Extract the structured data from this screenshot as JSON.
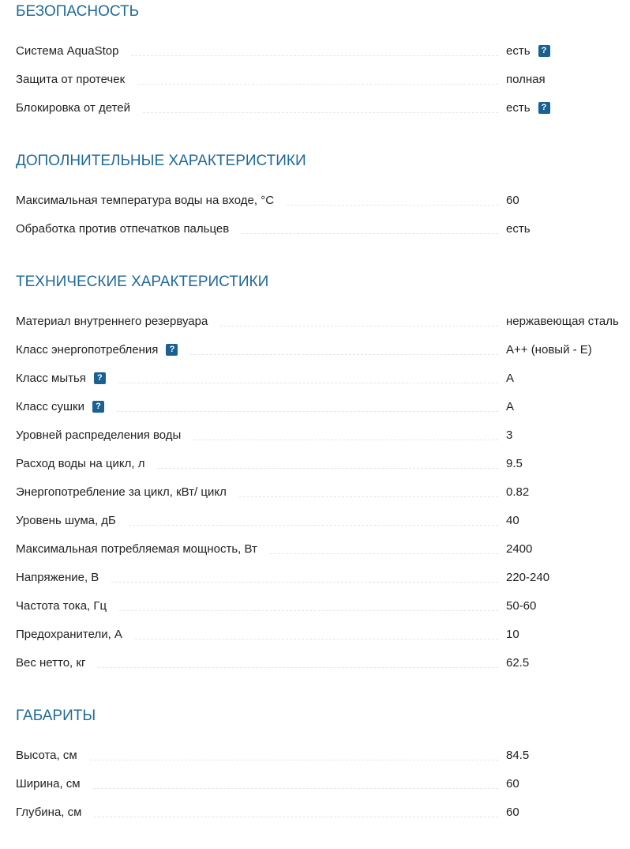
{
  "sections": [
    {
      "title": "БЕЗОПАСНОСТЬ",
      "rows": [
        {
          "label": "Система AquaStop",
          "value": "есть",
          "value_help": true
        },
        {
          "label": "Защита от протечек",
          "value": "полная"
        },
        {
          "label": "Блокировка от детей",
          "value": "есть",
          "value_help": true
        }
      ]
    },
    {
      "title": "ДОПОЛНИТЕЛЬНЫЕ ХАРАКТЕРИСТИКИ",
      "rows": [
        {
          "label": "Максимальная температура воды на входе, °C",
          "value": "60"
        },
        {
          "label": "Обработка против отпечатков пальцев",
          "value": "есть"
        }
      ]
    },
    {
      "title": "ТЕХНИЧЕСКИЕ ХАРАКТЕРИСТИКИ",
      "rows": [
        {
          "label": "Материал внутреннего резервуара",
          "value": "нержавеющая сталь"
        },
        {
          "label": "Класс энергопотребления",
          "value": "A++ (новый - E)",
          "label_help": true
        },
        {
          "label": "Класс мытья",
          "value": "A",
          "label_help": true
        },
        {
          "label": "Класс сушки",
          "value": "A",
          "label_help": true
        },
        {
          "label": "Уровней распределения воды",
          "value": "3"
        },
        {
          "label": "Расход воды на цикл, л",
          "value": "9.5"
        },
        {
          "label": "Энергопотребление за цикл, кВт/ цикл",
          "value": "0.82"
        },
        {
          "label": "Уровень шума, дБ",
          "value": "40"
        },
        {
          "label": "Максимальная потребляемая мощность, Вт",
          "value": "2400"
        },
        {
          "label": "Напряжение, В",
          "value": "220-240"
        },
        {
          "label": "Частота тока, Гц",
          "value": "50-60"
        },
        {
          "label": "Предохранители, А",
          "value": "10"
        },
        {
          "label": "Вес нетто, кг",
          "value": "62.5"
        }
      ]
    },
    {
      "title": "ГАБАРИТЫ",
      "rows": [
        {
          "label": "Высота, см",
          "value": "84.5"
        },
        {
          "label": "Ширина, см",
          "value": "60"
        },
        {
          "label": "Глубина, см",
          "value": "60"
        }
      ]
    }
  ],
  "help_icon": "question-mark-icon",
  "help_text": "?",
  "colors": {
    "heading": "#1f6a99",
    "help_icon_bg": "#1a6192"
  }
}
